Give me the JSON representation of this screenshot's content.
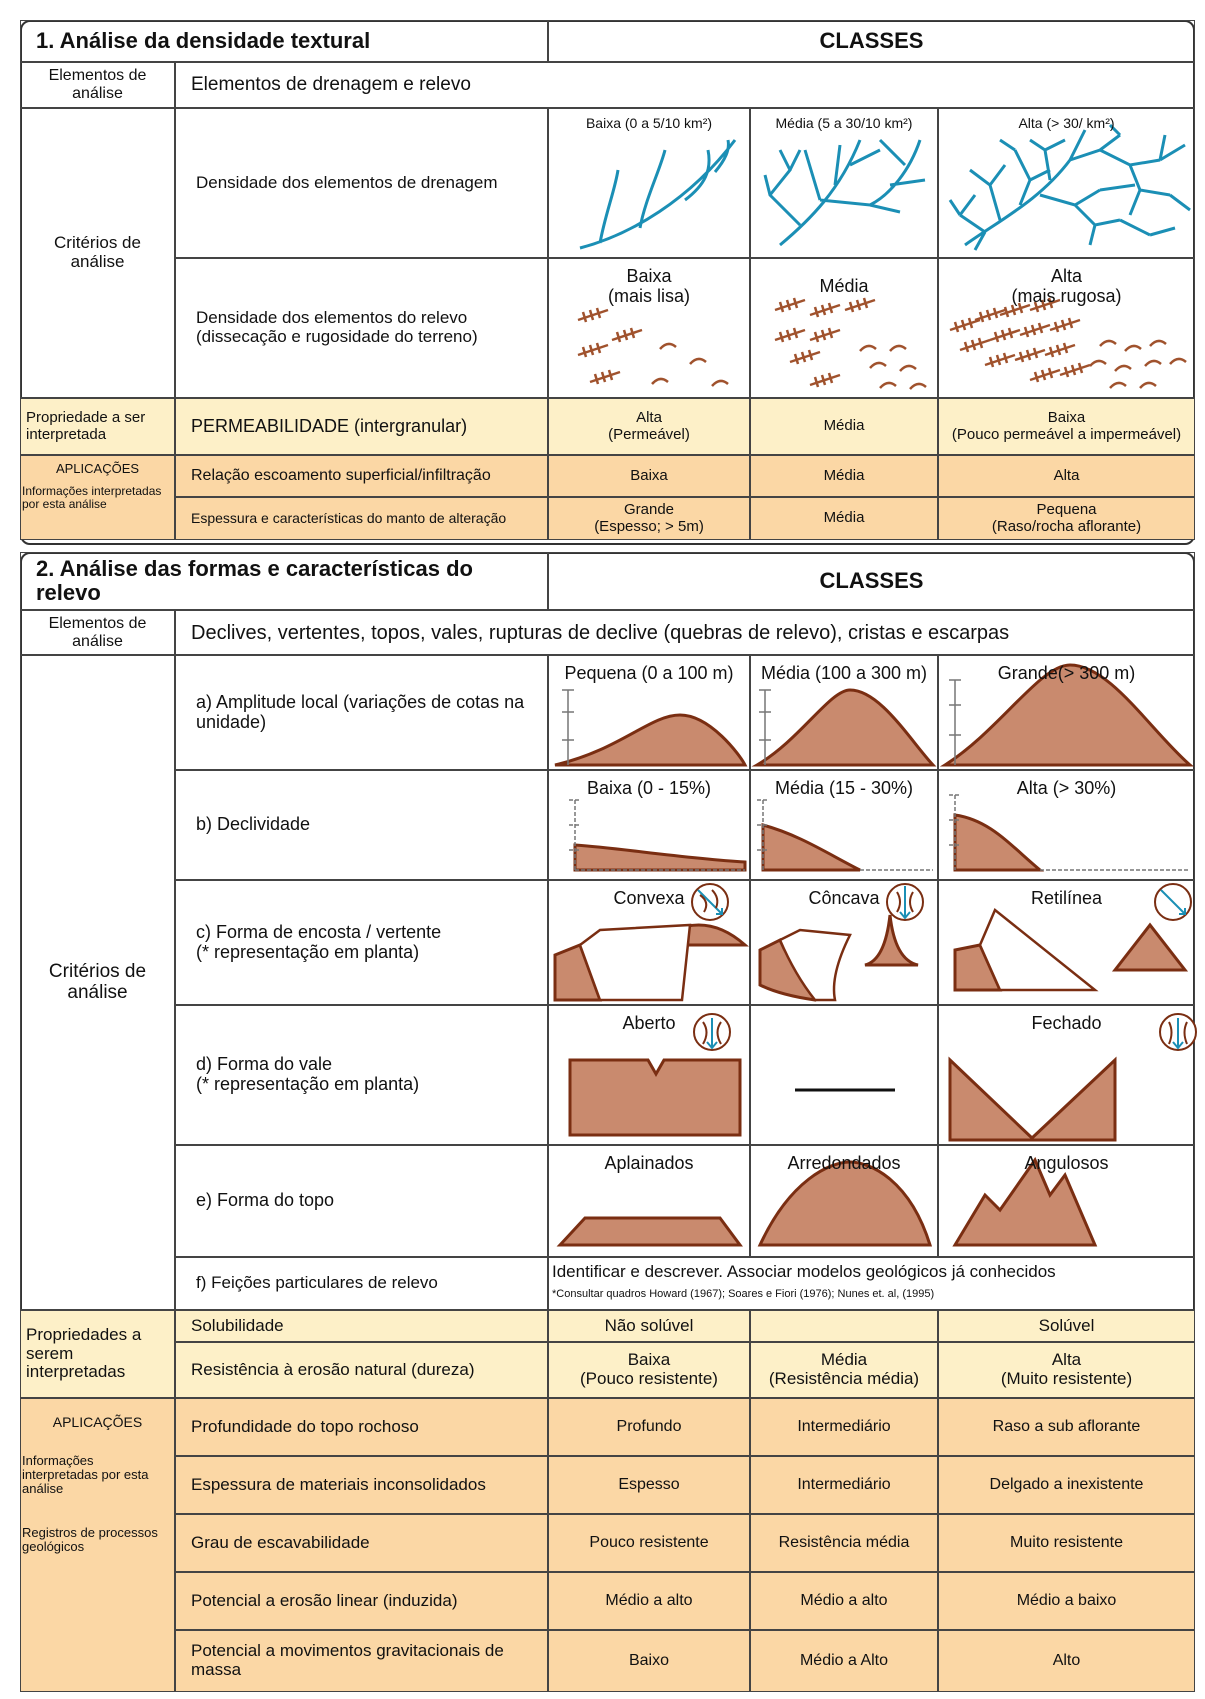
{
  "section1": {
    "title": "1. Análise da densidade textural",
    "classes_header": "CLASSES",
    "elements_label": "Elementos de análise",
    "elements_text": "Elementos de drenagem e relevo",
    "criteria_label": "Critérios de análise",
    "criteria": [
      {
        "label": "Densidade dos elementos de drenagem",
        "classes": [
          "Baixa (0 a 5/10 km²)",
          "Média (5 a 30/10 km²)",
          "Alta (> 30/ km²)"
        ]
      },
      {
        "label": "Densidade dos elementos do relevo (dissecação e rugosidade do terreno)",
        "classes": [
          "Baixa\n(mais lisa)",
          "Média",
          "Alta\n(mais rugosa)"
        ]
      }
    ],
    "property": {
      "label": "Propriedade a ser interpretada",
      "text": "PERMEABILIDADE (intergranular)",
      "classes": [
        "Alta\n(Permeável)",
        "Média",
        "Baixa\n(Pouco permeável a impermeável)"
      ]
    },
    "applications": {
      "label": "APLICAÇÕES",
      "sublabel": "Informações interpretadas por esta análise",
      "rows": [
        {
          "text": "Relação escoamento superficial/infiltração",
          "classes": [
            "Baixa",
            "Média",
            "Alta"
          ]
        },
        {
          "text": "Espessura e características do manto de alteração",
          "classes": [
            "Grande\n(Espesso; > 5m)",
            "Média",
            "Pequena\n(Raso/rocha aflorante)"
          ]
        }
      ]
    }
  },
  "section2": {
    "title": "2. Análise das formas e características do relevo",
    "classes_header": "CLASSES",
    "elements_label": "Elementos de análise",
    "elements_text": "Declives, vertentes, topos, vales, rupturas de declive (quebras de relevo), cristas e escarpas",
    "criteria_label": "Critérios de análise",
    "criteria": [
      {
        "label": "a) Amplitude local (variações de cotas na unidade)",
        "classes": [
          "Pequena (0 a 100 m)",
          "Média (100 a 300 m)",
          "Grande(> 300 m)"
        ]
      },
      {
        "label": "b) Declividade",
        "classes": [
          "Baixa (0 - 15%)",
          "Média (15 - 30%)",
          "Alta (> 30%)"
        ]
      },
      {
        "label": "c) Forma de encosta / vertente\n(* representação em planta)",
        "classes": [
          "Convexa",
          "Côncava",
          "Retilínea"
        ]
      },
      {
        "label": "d) Forma do vale\n(* representação em planta)",
        "classes": [
          "Aberto",
          null,
          "Fechado"
        ]
      },
      {
        "label": "e) Forma do topo",
        "classes": [
          "Aplainados",
          "Arredondados",
          "Angulosos"
        ]
      }
    ],
    "particular": {
      "label": "f) Feições particulares de relevo",
      "text": "Identificar e descrever. Associar modelos geológicos já conhecidos",
      "note": "*Consultar quadros Howard (1967); Soares e Fiori (1976); Nunes et. al, (1995)"
    },
    "properties": {
      "label": "Propriedades a serem interpretadas",
      "rows": [
        {
          "text": "Solubilidade",
          "classes": [
            "Não solúvel",
            null,
            "Solúvel"
          ]
        },
        {
          "text": "Resistência à erosão natural (dureza)",
          "classes": [
            "Baixa\n(Pouco resistente)",
            "Média\n(Resistência média)",
            "Alta\n(Muito resistente)"
          ]
        }
      ]
    },
    "applications": {
      "label": "APLICAÇÕES",
      "sublabel": "Informações interpretadas por esta análise",
      "sublabel2": "Registros de processos geológicos",
      "rows": [
        {
          "text": "Profundidade do topo rochoso",
          "classes": [
            "Profundo",
            "Intermediário",
            "Raso a sub aflorante"
          ]
        },
        {
          "text": "Espessura de materiais inconsolidados",
          "classes": [
            "Espesso",
            "Intermediário",
            "Delgado a inexistente"
          ]
        },
        {
          "text": "Grau de escavabilidade",
          "classes": [
            "Pouco resistente",
            "Resistência média",
            "Muito resistente"
          ]
        },
        {
          "text": "Potencial a erosão linear (induzida)",
          "classes": [
            "Médio a alto",
            "Médio a alto",
            "Médio a baixo"
          ]
        },
        {
          "text": "Potencial a movimentos gravitacionais de massa",
          "classes": [
            "Baixo",
            "Médio a Alto",
            "Alto"
          ]
        }
      ]
    }
  }
}
